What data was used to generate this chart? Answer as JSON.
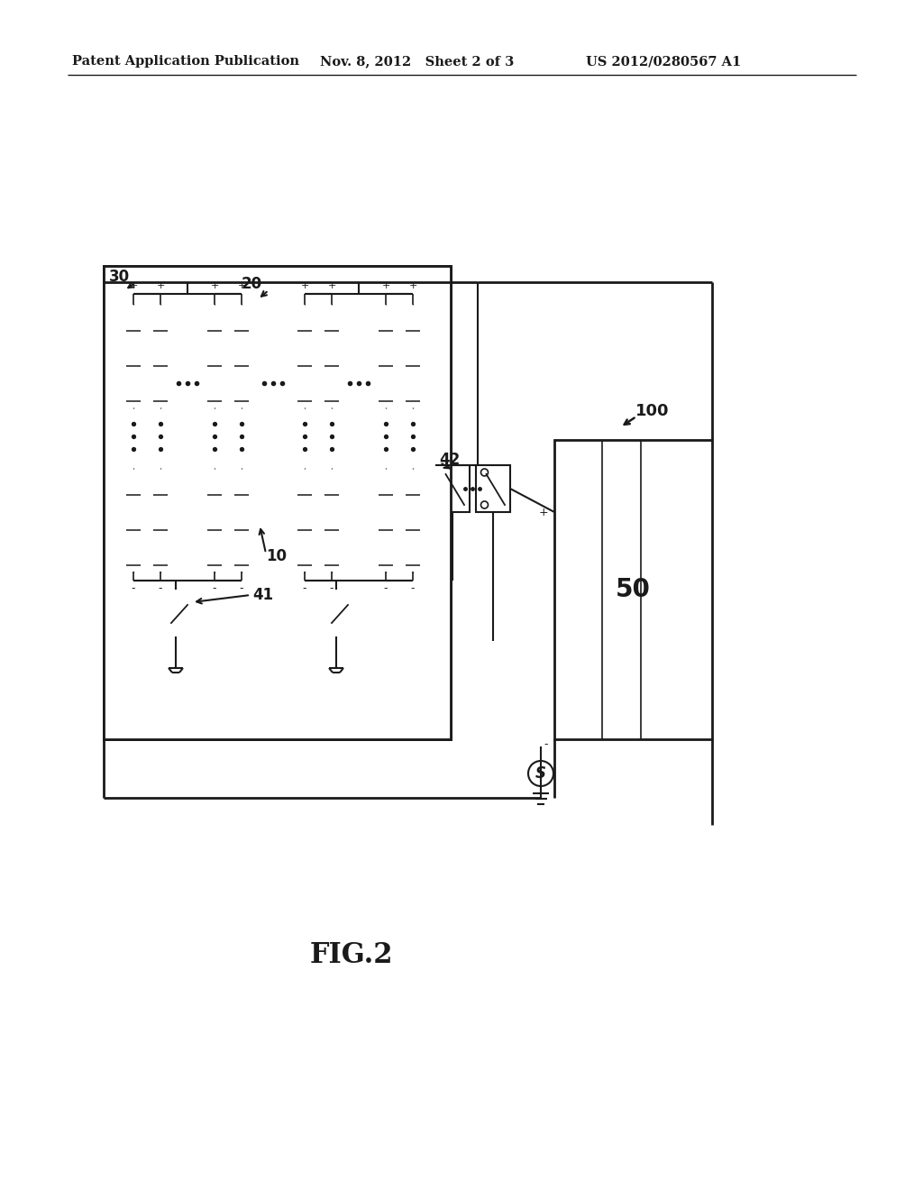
{
  "bg_color": "#ffffff",
  "line_color": "#1a1a1a",
  "header_left": "Patent Application Publication",
  "header_mid": "Nov. 8, 2012   Sheet 2 of 3",
  "header_right": "US 2012/0280567 A1",
  "fig_label": "FIG.2",
  "label_100": "100",
  "label_50": "50",
  "label_42": "42",
  "label_41": "41",
  "label_30": "30",
  "label_20": "20",
  "label_10": "10"
}
